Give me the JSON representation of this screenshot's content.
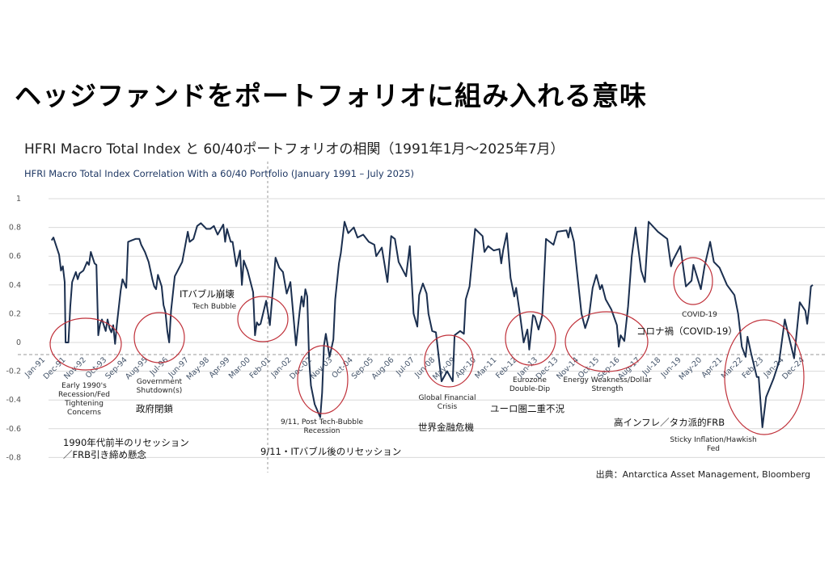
{
  "header": {
    "main_title": "ヘッジファンドをポートフォリオに組み入れる意味",
    "jp_subtitle": "HFRI Macro Total Index と 60/40ポートフォリオの相関（1991年1月～2025年7月）",
    "source": "出典：Antarctica Asset Management, Bloomberg"
  },
  "colors": {
    "line": "#1b2f4f",
    "circle": "#c0313a",
    "grid": "#d9d9d9",
    "dashed": "#999999"
  },
  "annotations": {
    "early90s_en": [
      "Early 1990's",
      "Recession/Fed",
      "Tightening",
      "Concerns"
    ],
    "early90s_jp": [
      "1990年代前半のリセッション",
      "／FRB引き締め懸念"
    ],
    "gov_en": [
      "Government",
      "Shutdown(s)"
    ],
    "gov_jp": "政府閉鎖",
    "tech_jp": "ITバブル崩壊",
    "tech_en": "Tech Bubble",
    "post_tech_en": [
      "9/11, Post Tech-Bubble",
      "Recession"
    ],
    "post_tech_jp": "9/11・ITバブル後のリセッション",
    "gfc_en": [
      "Global Financial",
      "Crisis"
    ],
    "gfc_jp": "世界金融危機",
    "euro_en": [
      "Eurozone",
      "Double-Dip"
    ],
    "euro_jp": "ユーロ圏二重不況",
    "energy_en": [
      "Energy Weakness/Dollar",
      "Strength"
    ],
    "covid_en": "COVID-19",
    "covid_jp": "コロナ禍（COVID-19）",
    "sticky_en": [
      "Sticky Inflation/Hawkish",
      "Fed"
    ],
    "sticky_jp": "高インフレ／タカ派的FRB"
  },
  "chart_data": {
    "type": "line",
    "title": "HFRI Macro Total Index Correlation With a 60/40 Portfolio (January 1991 – July 2025)",
    "xlabel": "",
    "ylabel": "",
    "ylim": [
      -0.8,
      1
    ],
    "y_ticks": [
      1,
      0.8,
      0.6,
      0.4,
      0.2,
      0,
      -0.2,
      -0.4,
      -0.6,
      -0.8
    ],
    "y_tick_labels": [
      "1",
      "0.8",
      "0.6",
      "0.4",
      "0.2",
      "0",
      "-0.2",
      "-0.4",
      "-0.6",
      "-0.8"
    ],
    "x_unit": "months since Jan-91",
    "xlim": [
      0,
      414
    ],
    "x_tick_step_months": 11,
    "x_tick_labels": [
      "Jan-91",
      "Dec-91",
      "Nov-92",
      "Oct-93",
      "Sep-94",
      "Aug-95",
      "Jul-96",
      "Jun-97",
      "May-98",
      "Apr-99",
      "Mar-00",
      "Feb-01",
      "Jan-02",
      "Dec-02",
      "Nov-03",
      "Oct-04",
      "Sep-05",
      "Aug-06",
      "Jul-07",
      "Jun-08",
      "May-09",
      "Apr-10",
      "Mar-11",
      "Feb-12",
      "Jan-13",
      "Dec-13",
      "Nov-14",
      "Oct-15",
      "Sep-16",
      "Aug-17",
      "Jul-18",
      "Jun-19",
      "May-20",
      "Apr-21",
      "Mar-22",
      "Feb-23",
      "Jan-24",
      "Dec-24"
    ],
    "grid": true,
    "series": [
      {
        "name": "HFRI Macro Total Index correlation with 60/40",
        "points": [
          [
            6,
            0.71
          ],
          [
            7,
            0.73
          ],
          [
            10,
            0.61
          ],
          [
            11,
            0.5
          ],
          [
            12,
            0.53
          ],
          [
            13,
            0.42
          ],
          [
            13.5,
            0
          ],
          [
            15,
            0
          ],
          [
            16,
            0.25
          ],
          [
            17,
            0.42
          ],
          [
            19,
            0.49
          ],
          [
            20,
            0.44
          ],
          [
            21,
            0.48
          ],
          [
            23,
            0.5
          ],
          [
            25,
            0.56
          ],
          [
            26,
            0.54
          ],
          [
            27,
            0.63
          ],
          [
            29,
            0.55
          ],
          [
            30,
            0.54
          ],
          [
            31,
            0.05
          ],
          [
            32,
            0.13
          ],
          [
            33,
            0.16
          ],
          [
            35,
            0.08
          ],
          [
            36,
            0.16
          ],
          [
            37,
            0.1
          ],
          [
            38,
            0.07
          ],
          [
            39,
            0.12
          ],
          [
            40,
            -0.01
          ],
          [
            41,
            0.13
          ],
          [
            43,
            0.36
          ],
          [
            44,
            0.44
          ],
          [
            46,
            0.38
          ],
          [
            47,
            0.7
          ],
          [
            49,
            0.71
          ],
          [
            51,
            0.72
          ],
          [
            53,
            0.72
          ],
          [
            54,
            0.68
          ],
          [
            56,
            0.63
          ],
          [
            58,
            0.56
          ],
          [
            60,
            0.44
          ],
          [
            61,
            0.39
          ],
          [
            62,
            0.37
          ],
          [
            63,
            0.47
          ],
          [
            65,
            0.39
          ],
          [
            66,
            0.26
          ],
          [
            67,
            0.21
          ],
          [
            68,
            0.08
          ],
          [
            69,
            0
          ],
          [
            70,
            0.22
          ],
          [
            72,
            0.46
          ],
          [
            74,
            0.51
          ],
          [
            76,
            0.56
          ],
          [
            78,
            0.7
          ],
          [
            79,
            0.77
          ],
          [
            80,
            0.7
          ],
          [
            82,
            0.72
          ],
          [
            84,
            0.81
          ],
          [
            86,
            0.83
          ],
          [
            89,
            0.79
          ],
          [
            91,
            0.79
          ],
          [
            93,
            0.81
          ],
          [
            95,
            0.75
          ],
          [
            98,
            0.82
          ],
          [
            99,
            0.7
          ],
          [
            100,
            0.79
          ],
          [
            102,
            0.7
          ],
          [
            103,
            0.7
          ],
          [
            105,
            0.53
          ],
          [
            107,
            0.64
          ],
          [
            108,
            0.4
          ],
          [
            109,
            0.57
          ],
          [
            111,
            0.5
          ],
          [
            112,
            0.45
          ],
          [
            114,
            0.35
          ],
          [
            115,
            0.05
          ],
          [
            116,
            0.14
          ],
          [
            117,
            0.12
          ],
          [
            118,
            0.13
          ],
          [
            121,
            0.29
          ],
          [
            123,
            0.12
          ],
          [
            126,
            0.59
          ],
          [
            128,
            0.52
          ],
          [
            130,
            0.49
          ],
          [
            132,
            0.34
          ],
          [
            133,
            0.38
          ],
          [
            134,
            0.42
          ],
          [
            137,
            -0.02
          ],
          [
            139,
            0.22
          ],
          [
            140,
            0.32
          ],
          [
            141,
            0.25
          ],
          [
            142,
            0.37
          ],
          [
            143,
            0.32
          ],
          [
            144,
            -0.12
          ],
          [
            145,
            -0.3
          ],
          [
            147,
            -0.43
          ],
          [
            150,
            -0.52
          ],
          [
            151,
            -0.35
          ],
          [
            152,
            -0.02
          ],
          [
            153,
            0.06
          ],
          [
            155,
            -0.1
          ],
          [
            157,
            0.02
          ],
          [
            158,
            0.3
          ],
          [
            160,
            0.55
          ],
          [
            161,
            0.62
          ],
          [
            163,
            0.84
          ],
          [
            165,
            0.76
          ],
          [
            168,
            0.8
          ],
          [
            170,
            0.73
          ],
          [
            173,
            0.75
          ],
          [
            176,
            0.7
          ],
          [
            179,
            0.68
          ],
          [
            180,
            0.6
          ],
          [
            183,
            0.66
          ],
          [
            186,
            0.42
          ],
          [
            188,
            0.74
          ],
          [
            190,
            0.72
          ],
          [
            192,
            0.56
          ],
          [
            196,
            0.46
          ],
          [
            198,
            0.67
          ],
          [
            200,
            0.2
          ],
          [
            202,
            0.11
          ],
          [
            203,
            0.33
          ],
          [
            205,
            0.41
          ],
          [
            207,
            0.34
          ],
          [
            208,
            0.2
          ],
          [
            210,
            0.08
          ],
          [
            212,
            0.07
          ],
          [
            215,
            -0.27
          ],
          [
            218,
            -0.2
          ],
          [
            221,
            -0.27
          ],
          [
            222,
            0.05
          ],
          [
            225,
            0.08
          ],
          [
            227,
            0.06
          ],
          [
            228,
            0.3
          ],
          [
            230,
            0.39
          ],
          [
            233,
            0.79
          ],
          [
            237,
            0.74
          ],
          [
            238,
            0.63
          ],
          [
            240,
            0.67
          ],
          [
            243,
            0.64
          ],
          [
            246,
            0.65
          ],
          [
            247,
            0.55
          ],
          [
            248,
            0.64
          ],
          [
            250,
            0.76
          ],
          [
            252,
            0.45
          ],
          [
            254,
            0.32
          ],
          [
            255,
            0.38
          ],
          [
            257,
            0.2
          ],
          [
            259,
            0
          ],
          [
            261,
            0.09
          ],
          [
            262,
            -0.05
          ],
          [
            264,
            0.19
          ],
          [
            265,
            0.18
          ],
          [
            267,
            0.09
          ],
          [
            269,
            0.19
          ],
          [
            271,
            0.72
          ],
          [
            272,
            0.71
          ],
          [
            275,
            0.68
          ],
          [
            277,
            0.77
          ],
          [
            282,
            0.78
          ],
          [
            283,
            0.73
          ],
          [
            284,
            0.8
          ],
          [
            286,
            0.7
          ],
          [
            287,
            0.57
          ],
          [
            290,
            0.2
          ],
          [
            292,
            0.1
          ],
          [
            294,
            0.18
          ],
          [
            296,
            0.38
          ],
          [
            298,
            0.47
          ],
          [
            300,
            0.37
          ],
          [
            301,
            0.4
          ],
          [
            303,
            0.3
          ],
          [
            306,
            0.23
          ],
          [
            309,
            0.12
          ],
          [
            310,
            -0.03
          ],
          [
            311,
            0.05
          ],
          [
            313,
            0.01
          ],
          [
            315,
            0.25
          ],
          [
            317,
            0.6
          ],
          [
            319,
            0.8
          ],
          [
            322,
            0.5
          ],
          [
            324,
            0.42
          ],
          [
            326,
            0.84
          ],
          [
            331,
            0.77
          ],
          [
            336,
            0.72
          ],
          [
            338,
            0.53
          ],
          [
            339,
            0.57
          ],
          [
            343,
            0.67
          ],
          [
            346,
            0.39
          ],
          [
            349,
            0.43
          ],
          [
            350,
            0.54
          ],
          [
            354,
            0.37
          ],
          [
            356,
            0.53
          ],
          [
            359,
            0.7
          ],
          [
            361,
            0.56
          ],
          [
            364,
            0.52
          ],
          [
            368,
            0.4
          ],
          [
            372,
            0.33
          ],
          [
            374,
            0.2
          ],
          [
            376,
            -0.03
          ],
          [
            378,
            -0.1
          ],
          [
            379,
            0.04
          ],
          [
            381,
            -0.08
          ],
          [
            384,
            -0.24
          ],
          [
            385,
            -0.24
          ],
          [
            387,
            -0.59
          ],
          [
            389,
            -0.38
          ],
          [
            393,
            -0.25
          ],
          [
            396,
            -0.13
          ],
          [
            399,
            0.16
          ],
          [
            401,
            0.05
          ],
          [
            404,
            -0.11
          ],
          [
            407,
            0.28
          ],
          [
            410,
            0.22
          ],
          [
            411,
            0.13
          ],
          [
            412,
            0.24
          ],
          [
            413,
            0.39
          ],
          [
            414,
            0.4
          ]
        ]
      }
    ]
  }
}
